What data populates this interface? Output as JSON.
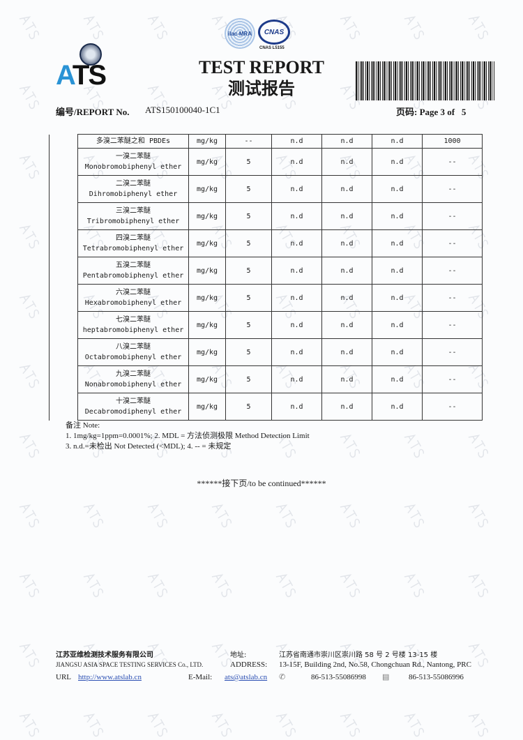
{
  "header": {
    "logo_text": "ATS",
    "accreditation": {
      "ilac": "ilac-MRA",
      "cnas": "CNAS",
      "cnas_no": "CNAS L5155"
    },
    "title_en": "TEST REPORT",
    "title_cn": "测试报告",
    "report_no_label": "编号/REPORT No.",
    "report_no": "ATS150100040-1C1",
    "page_label": "页码: Page 3 of",
    "page_total": "5"
  },
  "table": {
    "rows": [
      {
        "cn": "多溴二苯醚之和 PBDEs",
        "en": "",
        "unit": "mg/kg",
        "mdl": "--",
        "r1": "n.d",
        "r2": "n.d",
        "r3": "n.d",
        "limit": "1000"
      },
      {
        "cn": "一溴二苯醚",
        "en": "Monobromobiphenyl ether",
        "unit": "mg/kg",
        "mdl": "5",
        "r1": "n.d",
        "r2": "n.d",
        "r3": "n.d",
        "limit": "--"
      },
      {
        "cn": "二溴二苯醚",
        "en": "Dihromobiphenyl ether",
        "unit": "mg/kg",
        "mdl": "5",
        "r1": "n.d",
        "r2": "n.d",
        "r3": "n.d",
        "limit": "--"
      },
      {
        "cn": "三溴二苯醚",
        "en": "Tribromobiphenyl ether",
        "unit": "mg/kg",
        "mdl": "5",
        "r1": "n.d",
        "r2": "n.d",
        "r3": "n.d",
        "limit": "--"
      },
      {
        "cn": "四溴二苯醚",
        "en": "Tetrabromobiphenyl ether",
        "unit": "mg/kg",
        "mdl": "5",
        "r1": "n.d",
        "r2": "n.d",
        "r3": "n.d",
        "limit": "--"
      },
      {
        "cn": "五溴二苯醚",
        "en": "Pentabromobiphenyl ether",
        "unit": "mg/kg",
        "mdl": "5",
        "r1": "n.d",
        "r2": "n.d",
        "r3": "n.d",
        "limit": "--"
      },
      {
        "cn": "六溴二苯醚",
        "en": "Hexabromobiphenyl ether",
        "unit": "mg/kg",
        "mdl": "5",
        "r1": "n.d",
        "r2": "n.d",
        "r3": "n.d",
        "limit": "--"
      },
      {
        "cn": "七溴二苯醚",
        "en": "heptabromobiphenyl ether",
        "unit": "mg/kg",
        "mdl": "5",
        "r1": "n.d",
        "r2": "n.d",
        "r3": "n.d",
        "limit": "--"
      },
      {
        "cn": "八溴二苯醚",
        "en": "Octabromobiphenyl ether",
        "unit": "mg/kg",
        "mdl": "5",
        "r1": "n.d",
        "r2": "n.d",
        "r3": "n.d",
        "limit": "--"
      },
      {
        "cn": "九溴二苯醚",
        "en": "Nonabromobiphenyl ether",
        "unit": "mg/kg",
        "mdl": "5",
        "r1": "n.d",
        "r2": "n.d",
        "r3": "n.d",
        "limit": "--"
      },
      {
        "cn": "十溴二苯醚",
        "en": "Decabromodiphenyl ether",
        "unit": "mg/kg",
        "mdl": "5",
        "r1": "n.d",
        "r2": "n.d",
        "r3": "n.d",
        "limit": "--"
      }
    ]
  },
  "notes": {
    "title": "备注 Note:",
    "line1": "1. 1mg/kg=1ppm=0.0001%; 2. MDL = 方法侦测极限 Method Detection Limit",
    "line2": "3. n.d.=未检出 Not Detected (<MDL); 4. -- = 未规定"
  },
  "continued": "******接下页/to be continued******",
  "footer": {
    "company_cn": "江苏亚维检测技术服务有限公司",
    "company_en": "JIANGSU ASIA SPACE TESTING SERVICES Co., LTD.",
    "url_label": "URL",
    "url": "http://www.atslab.cn",
    "address_label_cn": "地址:",
    "address_label_en": "ADDRESS:",
    "address_cn": "江苏省南通市崇川区崇川路 58 号 2 号楼 13-15 楼",
    "address_en": "13-15F, Building 2nd, No.58, Chongchuan Rd., Nantong, PRC",
    "email_label": "E-Mail:",
    "email": "ats@atslab.cn",
    "phone": "86-513-55086998",
    "fax": "86-513-55086996"
  },
  "watermark": "ATS"
}
